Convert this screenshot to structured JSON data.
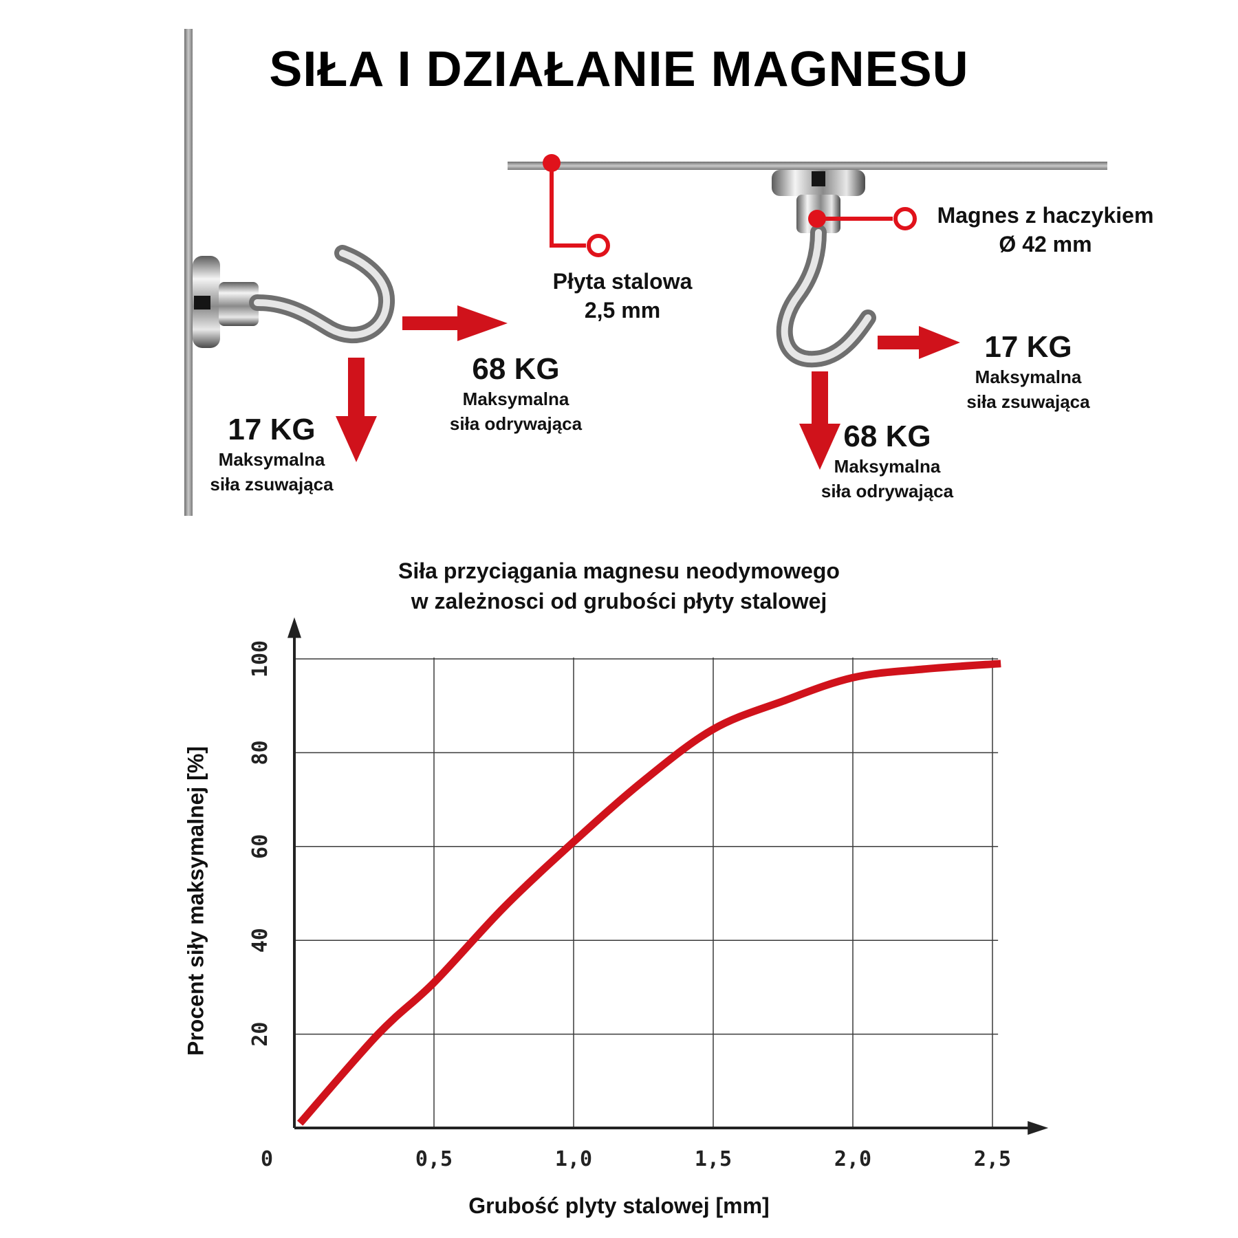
{
  "title": "SIŁA I DZIAŁANIE MAGNESU",
  "diagram": {
    "left_slide": {
      "value": "17 KG",
      "line1": "Maksymalna",
      "line2": "siła zsuwająca"
    },
    "left_pull": {
      "value": "68 KG",
      "line1": "Maksymalna",
      "line2": "siła odrywająca"
    },
    "plate": {
      "line1": "Płyta stalowa",
      "line2": "2,5 mm"
    },
    "magnet": {
      "line1": "Magnes z haczykiem",
      "line2": "Ø 42 mm"
    },
    "right_slide": {
      "value": "17 KG",
      "line1": "Maksymalna",
      "line2": "siła zsuwająca"
    },
    "right_pull": {
      "value": "68 KG",
      "line1": "Maksymalna",
      "line2": "siła odrywająca"
    },
    "colors": {
      "arrow": "#d0121b",
      "steel": "#9a9a9a"
    }
  },
  "chart_data": {
    "type": "line",
    "title_line1": "Siła przyciągania magnesu neodymowego",
    "title_line2": "w zależnosci od grubości płyty stalowej",
    "xlabel": "Grubość plyty stalowej [mm]",
    "ylabel": "Procent siły maksymalnej [%]",
    "xlim": [
      0,
      2.7
    ],
    "ylim": [
      0,
      103
    ],
    "x_ticks": [
      {
        "value": 0,
        "label": "0"
      },
      {
        "value": 0.5,
        "label": "0,5"
      },
      {
        "value": 1.0,
        "label": "1,0"
      },
      {
        "value": 1.5,
        "label": "1,5"
      },
      {
        "value": 2.0,
        "label": "2,0"
      },
      {
        "value": 2.5,
        "label": "2,5"
      }
    ],
    "y_ticks": [
      {
        "value": 20,
        "label": "20"
      },
      {
        "value": 40,
        "label": "40"
      },
      {
        "value": 60,
        "label": "60"
      },
      {
        "value": 80,
        "label": "80"
      },
      {
        "value": 100,
        "label": "100"
      }
    ],
    "grid": true,
    "series": [
      {
        "color": "#d0121b",
        "x": [
          0.02,
          0.3,
          0.5,
          0.75,
          1.0,
          1.25,
          1.5,
          1.75,
          2.0,
          2.25,
          2.53
        ],
        "y": [
          1,
          20,
          31,
          47,
          61,
          74,
          85,
          91,
          96,
          97.8,
          99
        ]
      }
    ]
  }
}
